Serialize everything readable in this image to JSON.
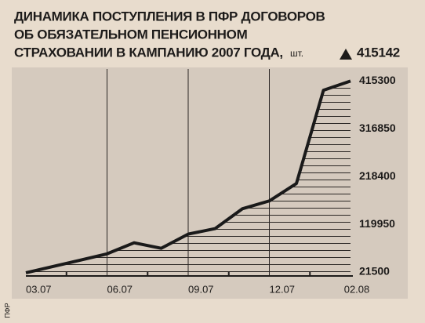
{
  "chart_data": {
    "type": "line",
    "title": [
      "ДИНАМИКА ПОСТУПЛЕНИЯ В ПФР ДОГОВОРОВ",
      "ОБ ОБЯЗАТЕЛЬНОМ ПЕНСИОННОМ",
      "СТРАХОВАНИИ В КАМПАНИЮ 2007 ГОДА,"
    ],
    "unit": "шт.",
    "annotation": "415142",
    "source": "ПФР",
    "categories": [
      "03.07",
      null,
      null,
      "06.07",
      null,
      null,
      "09.07",
      null,
      null,
      "12.07",
      null,
      null,
      "02.08"
    ],
    "values": [
      20000,
      32900,
      45900,
      59000,
      81800,
      70400,
      99700,
      111100,
      151800,
      168100,
      203900,
      396100,
      415142
    ],
    "color": "#1a1a1a",
    "ylim": [
      13400,
      440000
    ],
    "yticks": [
      21500,
      119950,
      218400,
      316850,
      415300
    ]
  }
}
